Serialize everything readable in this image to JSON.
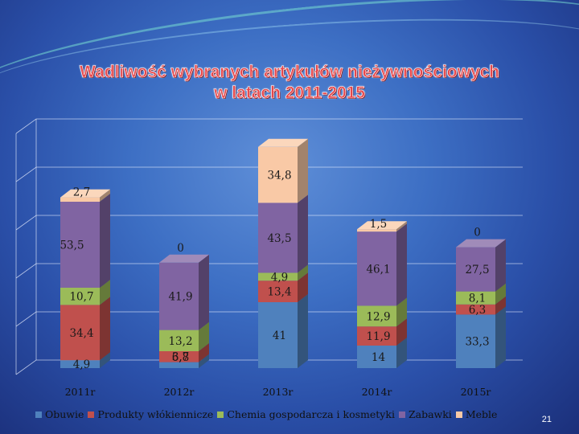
{
  "title": {
    "line1": "Wadliwość wybranych artykułów nieżywnościowych",
    "line2": "w latach 2011-2015"
  },
  "page_number": "21",
  "colors": {
    "Obuwie": "#4f81bd",
    "Produkty włókiennicze": "#c0504d",
    "Chemia gospodarcza i kosmetyki": "#9bbb59",
    "Zabawki": "#8064a2",
    "Meble": "#f9c9a6"
  },
  "chart_data": {
    "type": "bar",
    "stacked": true,
    "three_d": true,
    "categories": [
      "2011r",
      "2012r",
      "2013r",
      "2014r",
      "2015r"
    ],
    "series": [
      {
        "name": "Obuwie",
        "values": [
          4.9,
          3.7,
          41,
          14,
          33.3
        ],
        "labels": [
          "4,9",
          "3,7",
          "41",
          "14",
          "33,3"
        ]
      },
      {
        "name": "Produkty włókiennicze",
        "values": [
          34.4,
          6.8,
          13.4,
          11.9,
          6.3
        ],
        "labels": [
          "34,4",
          "6,8",
          "13,4",
          "11,9",
          "6,3"
        ]
      },
      {
        "name": "Chemia gospodarcza i kosmetyki",
        "values": [
          10.7,
          13.2,
          4.9,
          12.9,
          8.1
        ],
        "labels": [
          "10,7",
          "13,2",
          "4,9",
          "12,9",
          "8,1"
        ]
      },
      {
        "name": "Zabawki",
        "values": [
          53.5,
          41.9,
          43.5,
          46.1,
          27.5
        ],
        "labels": [
          "53,5",
          "41,9",
          "43,5",
          "46,1",
          "27,5"
        ]
      },
      {
        "name": "Meble",
        "values": [
          2.7,
          0,
          34.8,
          1.5,
          0
        ],
        "labels": [
          "2,7",
          "0",
          "34,8",
          "1,5",
          "0"
        ]
      }
    ],
    "ylim": [
      0,
      150
    ],
    "grid": true,
    "legend_position": "bottom"
  }
}
